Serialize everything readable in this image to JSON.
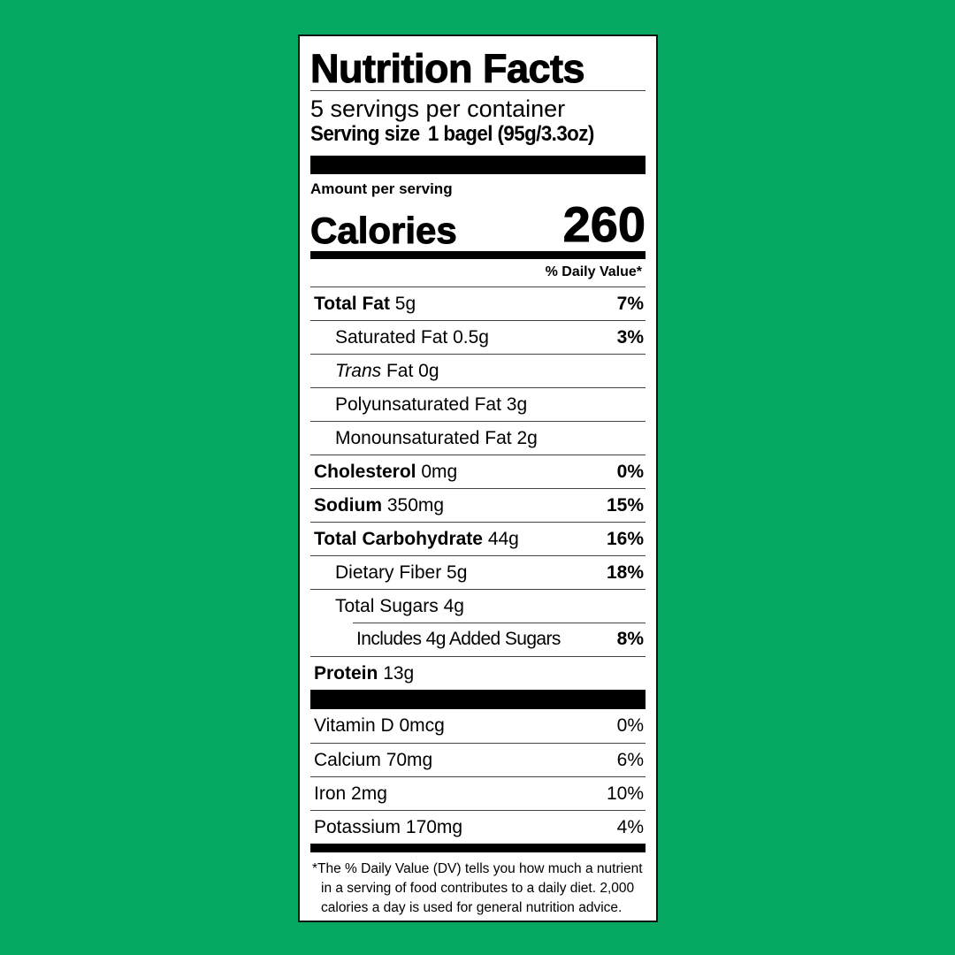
{
  "title": "Nutrition Facts",
  "servings_per_container": "5 servings per container",
  "serving_size_label": "Serving size",
  "serving_size_value": "1 bagel (95g/3.3oz)",
  "amount_per_serving": "Amount per serving",
  "calories_label": "Calories",
  "calories_value": "260",
  "daily_value_header": "% Daily Value*",
  "nutrients": [
    {
      "name": "Total Fat",
      "amount": "5g",
      "dv": "7%",
      "bold": true,
      "indent": 0
    },
    {
      "name": "Saturated Fat",
      "amount": "0.5g",
      "dv": "3%",
      "bold": false,
      "indent": 1
    },
    {
      "name": "Trans",
      "name_suffix": "Fat",
      "amount": "0g",
      "dv": "",
      "bold": false,
      "indent": 1
    },
    {
      "name": "Polyunsaturated Fat",
      "amount": "3g",
      "dv": "",
      "bold": false,
      "indent": 1
    },
    {
      "name": "Monounsaturated Fat",
      "amount": "2g",
      "dv": "",
      "bold": false,
      "indent": 1
    },
    {
      "name": "Cholesterol",
      "amount": "0mg",
      "dv": "0%",
      "bold": true,
      "indent": 0
    },
    {
      "name": "Sodium",
      "amount": "350mg",
      "dv": "15%",
      "bold": true,
      "indent": 0
    },
    {
      "name": "Total Carbohydrate",
      "amount": "44g",
      "dv": "16%",
      "bold": true,
      "indent": 0
    },
    {
      "name": "Dietary Fiber",
      "amount": "5g",
      "dv": "18%",
      "bold": false,
      "indent": 1
    },
    {
      "name": "Total Sugars",
      "amount": "4g",
      "dv": "",
      "bold": false,
      "indent": 1
    },
    {
      "name": "Includes 4g Added Sugars",
      "amount": "",
      "dv": "8%",
      "bold": false,
      "indent": 2
    },
    {
      "name": "Protein",
      "amount": "13g",
      "dv": "",
      "bold": true,
      "indent": 0
    }
  ],
  "vitamins": [
    {
      "name": "Vitamin D",
      "amount": "0mcg",
      "dv": "0%"
    },
    {
      "name": "Calcium",
      "amount": "70mg",
      "dv": "6%"
    },
    {
      "name": "Iron",
      "amount": "2mg",
      "dv": "10%"
    },
    {
      "name": "Potassium",
      "amount": "170mg",
      "dv": "4%"
    }
  ],
  "footnote": [
    "*The % Daily Value (DV) tells you how much a nutrient",
    "in a serving of food contributes to a daily diet. 2,000",
    "calories a day is used for general nutrition advice."
  ],
  "colors": {
    "background": "#07a862",
    "label": "#ffffff",
    "text": "#000000"
  }
}
